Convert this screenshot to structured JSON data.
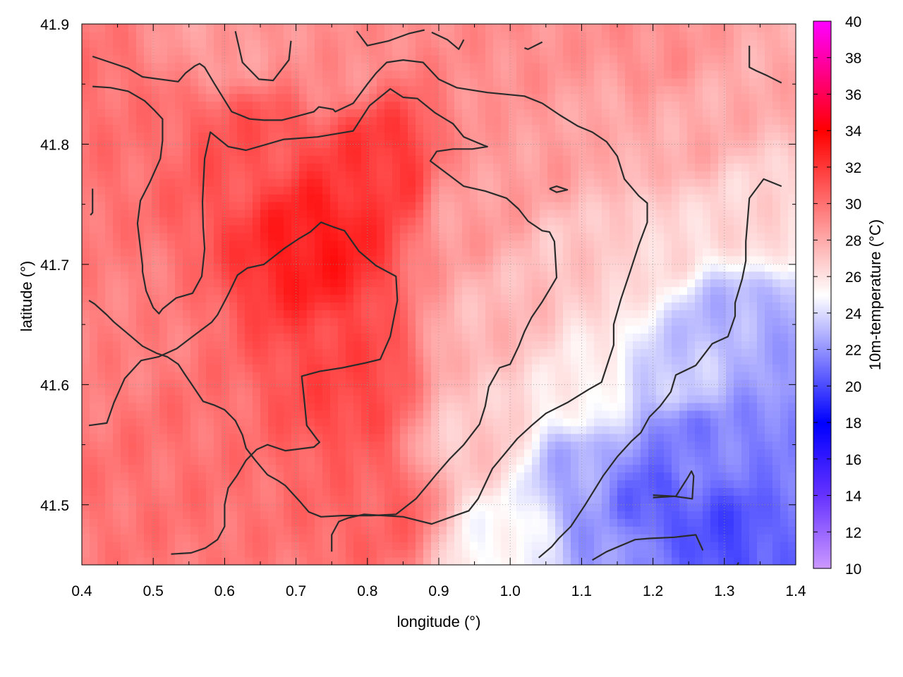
{
  "chart_data": {
    "type": "heatmap",
    "title": "",
    "xlabel": "longitude (°)",
    "ylabel": "latitude (°)",
    "colorbar_label": "10m-temperature (°C)",
    "xlim": [
      0.4,
      1.4
    ],
    "ylim": [
      41.45,
      41.9
    ],
    "x_ticks": [
      "0.4",
      "0.5",
      "0.6",
      "0.7",
      "0.8",
      "0.9",
      "1.0",
      "1.1",
      "1.2",
      "1.3",
      "1.4"
    ],
    "x_tick_values": [
      0.4,
      0.5,
      0.6,
      0.7,
      0.8,
      0.9,
      1.0,
      1.1,
      1.2,
      1.3,
      1.4
    ],
    "y_ticks": [
      "41.5",
      "41.6",
      "41.7",
      "41.8",
      "41.9"
    ],
    "y_tick_values": [
      41.5,
      41.6,
      41.7,
      41.8,
      41.9
    ],
    "colorbar_range": [
      10,
      40
    ],
    "colorbar_ticks": [
      "10",
      "12",
      "14",
      "16",
      "18",
      "20",
      "22",
      "24",
      "26",
      "28",
      "30",
      "32",
      "34",
      "36",
      "38",
      "40"
    ],
    "colorbar_tick_values": [
      10,
      12,
      14,
      16,
      18,
      20,
      22,
      24,
      26,
      28,
      30,
      32,
      34,
      36,
      38,
      40
    ],
    "colormap": [
      {
        "value": 10,
        "color": "#cc99ff"
      },
      {
        "value": 14,
        "color": "#6633ff"
      },
      {
        "value": 18,
        "color": "#0000ff"
      },
      {
        "value": 25,
        "color": "#ffffff"
      },
      {
        "value": 34,
        "color": "#ff0000"
      },
      {
        "value": 40,
        "color": "#ff00ff"
      }
    ],
    "grid": true,
    "field_sources": [
      {
        "lon": 0.73,
        "lat": 41.72,
        "temp": 33.0
      },
      {
        "lon": 0.82,
        "lat": 41.78,
        "temp": 32.0
      },
      {
        "lon": 0.63,
        "lat": 41.8,
        "temp": 31.0
      },
      {
        "lon": 0.78,
        "lat": 41.6,
        "temp": 31.5
      },
      {
        "lon": 0.82,
        "lat": 41.5,
        "temp": 30.5
      },
      {
        "lon": 0.55,
        "lat": 41.55,
        "temp": 30.0
      },
      {
        "lon": 0.45,
        "lat": 41.65,
        "temp": 29.5
      },
      {
        "lon": 0.45,
        "lat": 41.82,
        "temp": 30.0
      },
      {
        "lon": 0.6,
        "lat": 41.89,
        "temp": 28.5
      },
      {
        "lon": 0.75,
        "lat": 41.88,
        "temp": 29.0
      },
      {
        "lon": 1.0,
        "lat": 41.88,
        "temp": 29.0
      },
      {
        "lon": 1.2,
        "lat": 41.88,
        "temp": 29.0
      },
      {
        "lon": 1.38,
        "lat": 41.86,
        "temp": 28.0
      },
      {
        "lon": 0.95,
        "lat": 41.75,
        "temp": 28.5
      },
      {
        "lon": 1.05,
        "lat": 41.8,
        "temp": 28.5
      },
      {
        "lon": 1.15,
        "lat": 41.8,
        "temp": 28.0
      },
      {
        "lon": 1.25,
        "lat": 41.82,
        "temp": 28.0
      },
      {
        "lon": 1.35,
        "lat": 41.74,
        "temp": 26.5
      },
      {
        "lon": 1.0,
        "lat": 41.65,
        "temp": 27.5
      },
      {
        "lon": 1.1,
        "lat": 41.7,
        "temp": 27.0
      },
      {
        "lon": 1.2,
        "lat": 41.72,
        "temp": 26.5
      },
      {
        "lon": 0.95,
        "lat": 41.55,
        "temp": 27.0
      },
      {
        "lon": 1.1,
        "lat": 41.6,
        "temp": 25.5
      },
      {
        "lon": 1.0,
        "lat": 41.47,
        "temp": 25.0
      },
      {
        "lon": 1.1,
        "lat": 41.52,
        "temp": 22.5
      },
      {
        "lon": 1.2,
        "lat": 41.5,
        "temp": 20.5
      },
      {
        "lon": 1.25,
        "lat": 41.55,
        "temp": 21.5
      },
      {
        "lon": 1.32,
        "lat": 41.47,
        "temp": 20.0
      },
      {
        "lon": 1.35,
        "lat": 41.55,
        "temp": 21.5
      },
      {
        "lon": 1.3,
        "lat": 41.65,
        "temp": 23.0
      },
      {
        "lon": 1.38,
        "lat": 41.64,
        "temp": 22.5
      },
      {
        "lon": 1.15,
        "lat": 41.46,
        "temp": 22.0
      },
      {
        "lon": 1.25,
        "lat": 41.61,
        "temp": 23.5
      },
      {
        "lon": 1.38,
        "lat": 41.46,
        "temp": 21.0
      }
    ],
    "contours": [
      [
        [
          0.415,
          41.873
        ],
        [
          0.44,
          41.868
        ],
        [
          0.465,
          41.863
        ],
        [
          0.485,
          41.856
        ],
        [
          0.535,
          41.852
        ],
        [
          0.545,
          41.859
        ],
        [
          0.558,
          41.865
        ],
        [
          0.565,
          41.867
        ],
        [
          0.572,
          41.864
        ],
        [
          0.585,
          41.851
        ],
        [
          0.61,
          41.827
        ],
        [
          0.635,
          41.821
        ],
        [
          0.655,
          41.82
        ],
        [
          0.68,
          41.82
        ],
        [
          0.7,
          41.823
        ],
        [
          0.725,
          41.827
        ],
        [
          0.732,
          41.831
        ],
        [
          0.752,
          41.829
        ],
        [
          0.755,
          41.827
        ],
        [
          0.78,
          41.834
        ],
        [
          0.8,
          41.85
        ],
        [
          0.812,
          41.859
        ],
        [
          0.827,
          41.868
        ],
        [
          0.85,
          41.87
        ],
        [
          0.878,
          41.868
        ],
        [
          0.9,
          41.854
        ],
        [
          0.925,
          41.847
        ],
        [
          0.968,
          41.843
        ],
        [
          1.02,
          41.84
        ],
        [
          1.045,
          41.834
        ],
        [
          1.07,
          41.824
        ],
        [
          1.095,
          41.815
        ],
        [
          1.115,
          41.81
        ],
        [
          1.135,
          41.802
        ],
        [
          1.15,
          41.79
        ],
        [
          1.16,
          41.771
        ],
        [
          1.18,
          41.757
        ],
        [
          1.192,
          41.751
        ],
        [
          1.192,
          41.735
        ],
        [
          1.18,
          41.716
        ],
        [
          1.168,
          41.694
        ],
        [
          1.155,
          41.671
        ],
        [
          1.145,
          41.65
        ],
        [
          1.145,
          41.633
        ],
        [
          1.128,
          41.602
        ],
        [
          1.11,
          41.596
        ],
        [
          1.08,
          41.585
        ],
        [
          1.05,
          41.576
        ],
        [
          1.03,
          41.566
        ],
        [
          1.01,
          41.555
        ],
        [
          0.975,
          41.53
        ],
        [
          0.955,
          41.505
        ],
        [
          0.942,
          41.495
        ],
        [
          0.918,
          41.49
        ],
        [
          0.89,
          41.484
        ],
        [
          0.85,
          41.49
        ],
        [
          0.823,
          41.491
        ],
        [
          0.795,
          41.492
        ],
        [
          0.773,
          41.489
        ],
        [
          0.76,
          41.486
        ],
        [
          0.75,
          41.475
        ],
        [
          0.75,
          41.461
        ]
      ],
      [
        [
          0.415,
          41.848
        ],
        [
          0.44,
          41.847
        ],
        [
          0.465,
          41.844
        ],
        [
          0.488,
          41.836
        ],
        [
          0.502,
          41.828
        ],
        [
          0.513,
          41.821
        ],
        [
          0.513,
          41.803
        ],
        [
          0.51,
          41.788
        ],
        [
          0.495,
          41.768
        ],
        [
          0.482,
          41.753
        ],
        [
          0.478,
          41.734
        ],
        [
          0.485,
          41.699
        ],
        [
          0.485,
          41.694
        ],
        [
          0.49,
          41.678
        ],
        [
          0.5,
          41.664
        ],
        [
          0.508,
          41.659
        ],
        [
          0.513,
          41.663
        ],
        [
          0.532,
          41.672
        ],
        [
          0.555,
          41.676
        ],
        [
          0.568,
          41.69
        ],
        [
          0.572,
          41.713
        ],
        [
          0.57,
          41.731
        ],
        [
          0.569,
          41.752
        ],
        [
          0.572,
          41.788
        ],
        [
          0.58,
          41.81
        ],
        [
          0.605,
          41.798
        ],
        [
          0.63,
          41.795
        ],
        [
          0.683,
          41.804
        ],
        [
          0.73,
          41.806
        ],
        [
          0.78,
          41.811
        ],
        [
          0.803,
          41.832
        ],
        [
          0.832,
          41.846
        ],
        [
          0.85,
          41.839
        ],
        [
          0.87,
          41.838
        ],
        [
          0.895,
          41.826
        ],
        [
          0.92,
          41.817
        ],
        [
          0.935,
          41.806
        ],
        [
          0.963,
          41.799
        ],
        [
          0.968,
          41.798
        ],
        [
          0.947,
          41.796
        ],
        [
          0.92,
          41.796
        ],
        [
          0.897,
          41.794
        ],
        [
          0.888,
          41.786
        ],
        [
          0.915,
          41.774
        ],
        [
          0.935,
          41.765
        ],
        [
          0.965,
          41.761
        ],
        [
          0.995,
          41.755
        ],
        [
          1.012,
          41.746
        ],
        [
          1.025,
          41.736
        ],
        [
          1.045,
          41.728
        ],
        [
          1.055,
          41.727
        ],
        [
          1.062,
          41.719
        ],
        [
          1.065,
          41.689
        ],
        [
          1.055,
          41.679
        ],
        [
          1.045,
          41.669
        ],
        [
          1.03,
          41.656
        ],
        [
          1.02,
          41.644
        ],
        [
          1.012,
          41.632
        ],
        [
          1.0,
          41.617
        ],
        [
          0.985,
          41.614
        ],
        [
          0.97,
          41.598
        ],
        [
          0.965,
          41.582
        ],
        [
          0.957,
          41.567
        ],
        [
          0.935,
          41.55
        ],
        [
          0.915,
          41.538
        ],
        [
          0.896,
          41.525
        ],
        [
          0.885,
          41.517
        ],
        [
          0.868,
          41.505
        ],
        [
          0.84,
          41.492
        ],
        [
          0.805,
          41.491
        ],
        [
          0.765,
          41.491
        ],
        [
          0.735,
          41.49
        ],
        [
          0.718,
          41.494
        ],
        [
          0.705,
          41.503
        ],
        [
          0.685,
          41.516
        ],
        [
          0.675,
          41.52
        ],
        [
          0.66,
          41.525
        ],
        [
          0.643,
          41.537
        ],
        [
          0.63,
          41.547
        ],
        [
          0.625,
          41.558
        ],
        [
          0.615,
          41.57
        ],
        [
          0.6,
          41.579
        ],
        [
          0.585,
          41.583
        ],
        [
          0.57,
          41.586
        ],
        [
          0.553,
          41.601
        ],
        [
          0.545,
          41.608
        ],
        [
          0.535,
          41.617
        ],
        [
          0.52,
          41.623
        ],
        [
          0.505,
          41.626
        ],
        [
          0.485,
          41.632
        ],
        [
          0.465,
          41.642
        ],
        [
          0.445,
          41.652
        ],
        [
          0.435,
          41.658
        ],
        [
          0.418,
          41.667
        ],
        [
          0.41,
          41.67
        ]
      ],
      [
        [
          0.41,
          41.566
        ],
        [
          0.435,
          41.568
        ],
        [
          0.445,
          41.585
        ],
        [
          0.46,
          41.605
        ],
        [
          0.483,
          41.62
        ],
        [
          0.507,
          41.623
        ],
        [
          0.533,
          41.63
        ],
        [
          0.555,
          41.64
        ],
        [
          0.582,
          41.652
        ],
        [
          0.59,
          41.658
        ],
        [
          0.605,
          41.675
        ],
        [
          0.618,
          41.691
        ],
        [
          0.632,
          41.697
        ],
        [
          0.655,
          41.7
        ],
        [
          0.683,
          41.713
        ],
        [
          0.703,
          41.721
        ],
        [
          0.72,
          41.727
        ],
        [
          0.735,
          41.735
        ],
        [
          0.753,
          41.731
        ],
        [
          0.768,
          41.728
        ],
        [
          0.788,
          41.711
        ],
        [
          0.812,
          41.699
        ],
        [
          0.84,
          41.69
        ],
        [
          0.842,
          41.67
        ],
        [
          0.832,
          41.64
        ],
        [
          0.818,
          41.621
        ],
        [
          0.797,
          41.618
        ],
        [
          0.765,
          41.614
        ],
        [
          0.733,
          41.611
        ],
        [
          0.708,
          41.607
        ],
        [
          0.712,
          41.585
        ],
        [
          0.715,
          41.566
        ],
        [
          0.73,
          41.554
        ],
        [
          0.733,
          41.552
        ],
        [
          0.725,
          41.548
        ],
        [
          0.685,
          41.545
        ],
        [
          0.66,
          41.55
        ],
        [
          0.645,
          41.546
        ],
        [
          0.63,
          41.537
        ],
        [
          0.617,
          41.524
        ],
        [
          0.605,
          41.514
        ],
        [
          0.6,
          41.5
        ],
        [
          0.6,
          41.482
        ],
        [
          0.59,
          41.471
        ],
        [
          0.573,
          41.464
        ],
        [
          0.553,
          41.46
        ],
        [
          0.525,
          41.459
        ]
      ],
      [
        [
          0.415,
          41.763
        ],
        [
          0.415,
          41.743
        ],
        [
          0.412,
          41.741
        ]
      ],
      [
        [
          0.615,
          41.894
        ],
        [
          0.625,
          41.868
        ],
        [
          0.648,
          41.854
        ],
        [
          0.668,
          41.853
        ],
        [
          0.69,
          41.87
        ],
        [
          0.693,
          41.886
        ]
      ],
      [
        [
          0.785,
          41.894
        ],
        [
          0.8,
          41.882
        ],
        [
          0.83,
          41.886
        ],
        [
          0.858,
          41.892
        ],
        [
          0.88,
          41.895
        ]
      ],
      [
        [
          0.89,
          41.893
        ],
        [
          0.912,
          41.887
        ],
        [
          0.928,
          41.879
        ],
        [
          0.935,
          41.887
        ]
      ],
      [
        [
          1.02,
          41.88
        ],
        [
          1.025,
          41.879
        ],
        [
          1.045,
          41.885
        ]
      ],
      [
        [
          1.335,
          41.882
        ],
        [
          1.335,
          41.864
        ],
        [
          1.345,
          41.861
        ],
        [
          1.36,
          41.857
        ],
        [
          1.38,
          41.851
        ]
      ],
      [
        [
          1.055,
          41.763
        ],
        [
          1.065,
          41.765
        ],
        [
          1.08,
          41.762
        ],
        [
          1.065,
          41.76
        ],
        [
          1.055,
          41.763
        ]
      ],
      [
        [
          1.38,
          41.765
        ],
        [
          1.355,
          41.771
        ],
        [
          1.335,
          41.755
        ],
        [
          1.333,
          41.74
        ],
        [
          1.33,
          41.719
        ],
        [
          1.33,
          41.703
        ],
        [
          1.325,
          41.688
        ],
        [
          1.315,
          41.668
        ],
        [
          1.315,
          41.657
        ],
        [
          1.305,
          41.64
        ],
        [
          1.283,
          41.634
        ],
        [
          1.26,
          41.616
        ],
        [
          1.232,
          41.608
        ],
        [
          1.225,
          41.594
        ],
        [
          1.21,
          41.582
        ],
        [
          1.195,
          41.573
        ],
        [
          1.183,
          41.56
        ],
        [
          1.17,
          41.553
        ],
        [
          1.15,
          41.54
        ],
        [
          1.13,
          41.524
        ],
        [
          1.105,
          41.5
        ],
        [
          1.085,
          41.482
        ],
        [
          1.068,
          41.472
        ],
        [
          1.058,
          41.465
        ],
        [
          1.04,
          41.456
        ]
      ],
      [
        [
          1.115,
          41.454
        ],
        [
          1.135,
          41.461
        ],
        [
          1.155,
          41.466
        ],
        [
          1.175,
          41.471
        ],
        [
          1.195,
          41.472
        ],
        [
          1.23,
          41.473
        ],
        [
          1.26,
          41.475
        ],
        [
          1.27,
          41.462
        ]
      ],
      [
        [
          1.2,
          41.506
        ],
        [
          1.23,
          41.507
        ],
        [
          1.255,
          41.505
        ],
        [
          1.257,
          41.524
        ],
        [
          1.254,
          41.528
        ],
        [
          1.248,
          41.522
        ],
        [
          1.232,
          41.507
        ],
        [
          1.2,
          41.508
        ]
      ],
      [
        [
          1.32,
          41.452
        ],
        [
          1.318,
          41.45
        ]
      ]
    ]
  }
}
